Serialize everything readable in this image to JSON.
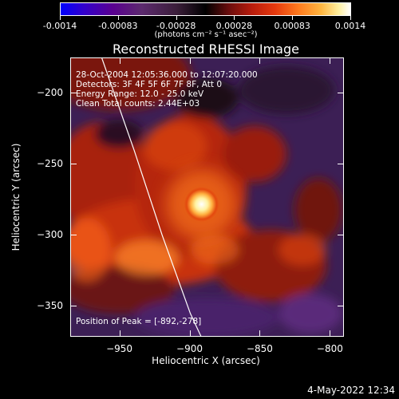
{
  "colorbar": {
    "tick_labels": [
      "-0.0014",
      "-0.00083",
      "-0.00028",
      "0.00028",
      "0.00083",
      "0.0014"
    ],
    "unit_label": "(photons cm⁻² s⁻¹ asec⁻²)"
  },
  "title": "Reconstructed RHESSI Image",
  "annotations": {
    "time_range": "28-Oct-2004 12:05:36.000 to 12:07:20.000",
    "detectors": "Detectors: 3F 4F 5F 6F 7F 8F, Att 0",
    "energy_range": "Energy Range: 12.0 - 25.0 keV",
    "clean_counts": "Clean    Total counts: 2.44E+03",
    "peak_position": "Position of Peak = [-892,-278]"
  },
  "axes": {
    "x_label": "Heliocentric X (arcsec)",
    "y_label": "Heliocentric Y (arcsec)",
    "x_ticks": [
      -950,
      -900,
      -850,
      -800
    ],
    "y_ticks": [
      -200,
      -250,
      -300,
      -350
    ],
    "x_range": [
      -985,
      -790
    ],
    "y_range": [
      -372,
      -175
    ]
  },
  "peak": {
    "x": -892,
    "y": -278
  },
  "limb_curve": [
    [
      -963,
      -175
    ],
    [
      -940,
      -240
    ],
    [
      -920,
      -300
    ],
    [
      -900,
      -355
    ],
    [
      -892,
      -372
    ]
  ],
  "colors": {
    "background": "#000000",
    "foreground": "#ffffff",
    "limb": "#ffffff"
  },
  "timestamp": "4-May-2022 12:34"
}
